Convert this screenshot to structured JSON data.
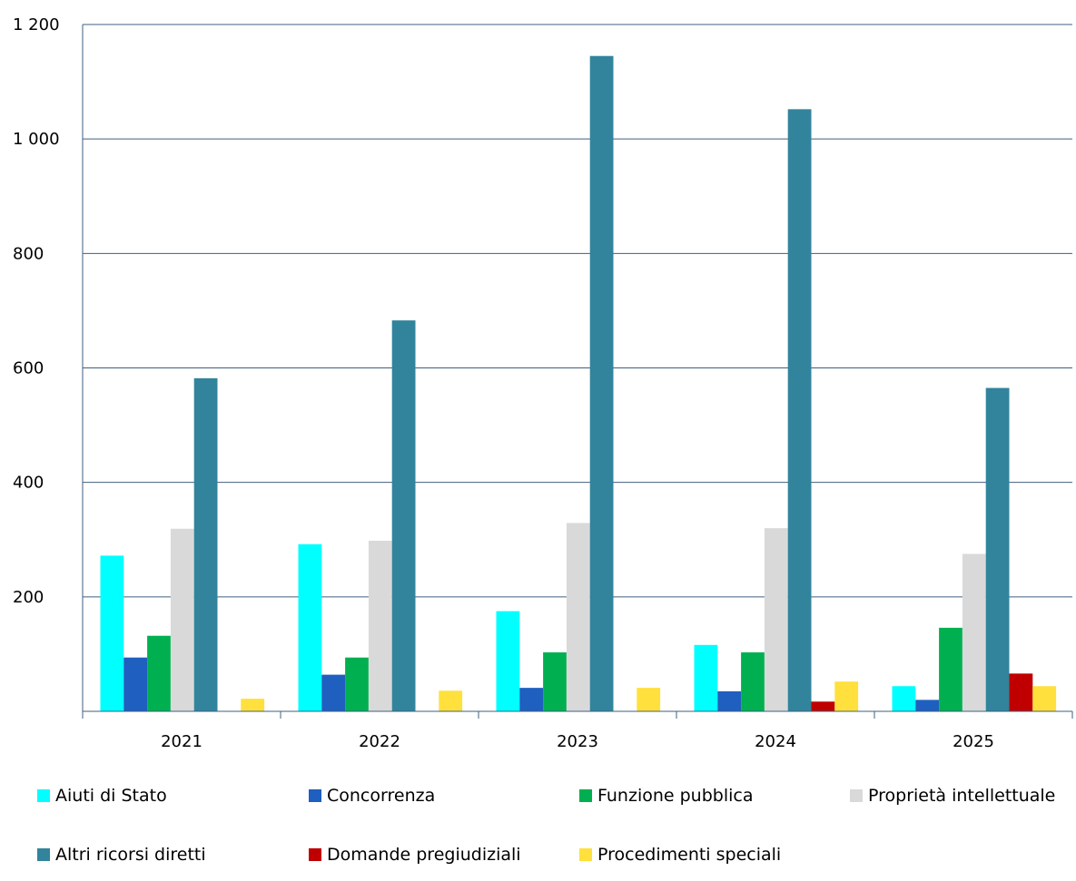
{
  "chart_data": {
    "type": "bar",
    "categories": [
      "2021",
      "2022",
      "2023",
      "2024",
      "2025"
    ],
    "series": [
      {
        "name": "Aiuti di Stato",
        "color": "#00FFFF",
        "values": [
          272,
          292,
          175,
          116,
          44
        ]
      },
      {
        "name": "Concorrenza",
        "color": "#1F5FBF",
        "values": [
          94,
          64,
          41,
          35,
          20
        ]
      },
      {
        "name": "Funzione pubblica",
        "color": "#00B050",
        "values": [
          132,
          94,
          103,
          103,
          146
        ]
      },
      {
        "name": "Proprietà intellettuale",
        "color": "#D9D9D9",
        "values": [
          319,
          298,
          329,
          320,
          275
        ]
      },
      {
        "name": "Altri ricorsi diretti",
        "color": "#31849B",
        "values": [
          582,
          683,
          1145,
          1052,
          565
        ]
      },
      {
        "name": "Domande pregiudiziali",
        "color": "#C00000",
        "values": [
          0,
          0,
          0,
          17,
          66
        ]
      },
      {
        "name": "Procedimenti speciali",
        "color": "#FFE03C",
        "values": [
          22,
          36,
          41,
          52,
          44
        ]
      }
    ],
    "yticks": [
      200,
      400,
      600,
      800,
      1000,
      1200
    ],
    "ytick_labels": [
      "200",
      "400",
      "600",
      "800",
      "1 000",
      "1 200"
    ],
    "ylim": [
      0,
      1200
    ],
    "grid": true,
    "legend_position": "bottom"
  }
}
